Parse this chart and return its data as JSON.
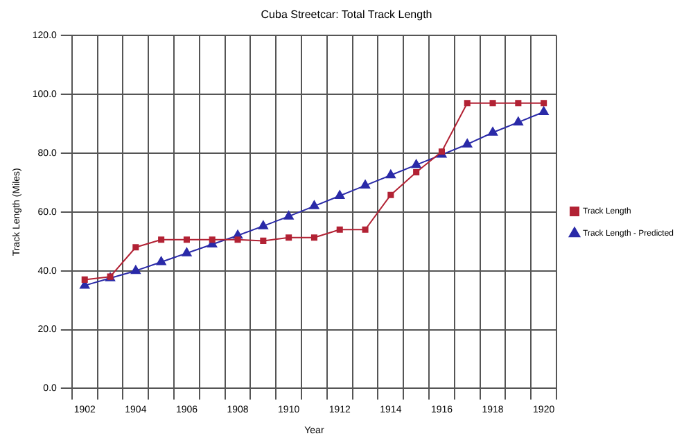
{
  "chart_data": {
    "type": "line",
    "title": "Cuba Streetcar: Total Track Length",
    "xlabel": "Year",
    "ylabel": "Track Length (Miles)",
    "categories": [
      "1902",
      null,
      "1904",
      null,
      "1906",
      null,
      "1908",
      null,
      "1910",
      null,
      "1912",
      null,
      "1914",
      null,
      "1916",
      null,
      "1918",
      null,
      "1920"
    ],
    "series": [
      {
        "name": "Track Length",
        "color": "#b22234",
        "marker": "square",
        "values": [
          37,
          38,
          48,
          50.6,
          50.6,
          50.6,
          50.6,
          50.2,
          51.3,
          51.3,
          54,
          54,
          65.8,
          73.5,
          80.5,
          97,
          97,
          97,
          97
        ]
      },
      {
        "name": "Track Length - Predicted",
        "color": "#2a2aa8",
        "marker": "triangle",
        "values": [
          35,
          37.5,
          40,
          43,
          46,
          49,
          52,
          55.2,
          58.5,
          62,
          65.5,
          69,
          72.5,
          76,
          79.5,
          83,
          87,
          90.5,
          94
        ]
      }
    ],
    "ylim": [
      0,
      120
    ],
    "yticks": [
      {
        "value": 0,
        "label": "0.0"
      },
      {
        "value": 20,
        "label": "20.0"
      },
      {
        "value": 40,
        "label": "40.0"
      },
      {
        "value": 60,
        "label": "60.0"
      },
      {
        "value": 80,
        "label": "80.0"
      },
      {
        "value": 100,
        "label": "100.0"
      },
      {
        "value": 120,
        "label": "120.0"
      }
    ],
    "grid": true,
    "legend": "right"
  }
}
